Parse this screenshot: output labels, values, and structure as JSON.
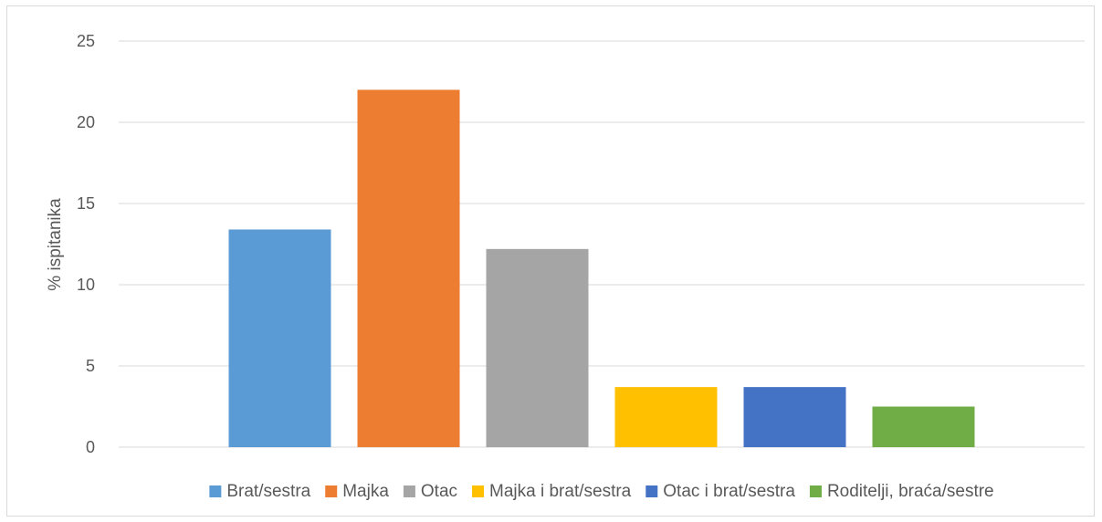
{
  "chart_data": {
    "type": "bar",
    "title": "",
    "xlabel": "",
    "ylabel": "% ispitanika",
    "ylim": [
      0,
      25
    ],
    "yticks": [
      0,
      5,
      10,
      15,
      20,
      25
    ],
    "grid": true,
    "legend_position": "bottom",
    "series": [
      {
        "name": "Brat/sestra",
        "value": 13.4,
        "color": "#5b9bd5"
      },
      {
        "name": "Majka",
        "value": 22.0,
        "color": "#ed7d31"
      },
      {
        "name": "Otac",
        "value": 12.2,
        "color": "#a5a5a5"
      },
      {
        "name": "Majka i brat/sestra",
        "value": 3.7,
        "color": "#ffc000"
      },
      {
        "name": "Otac i brat/sestra",
        "value": 3.7,
        "color": "#4472c4"
      },
      {
        "name": "Roditelji, braća/sestre",
        "value": 2.5,
        "color": "#70ad47"
      }
    ]
  }
}
